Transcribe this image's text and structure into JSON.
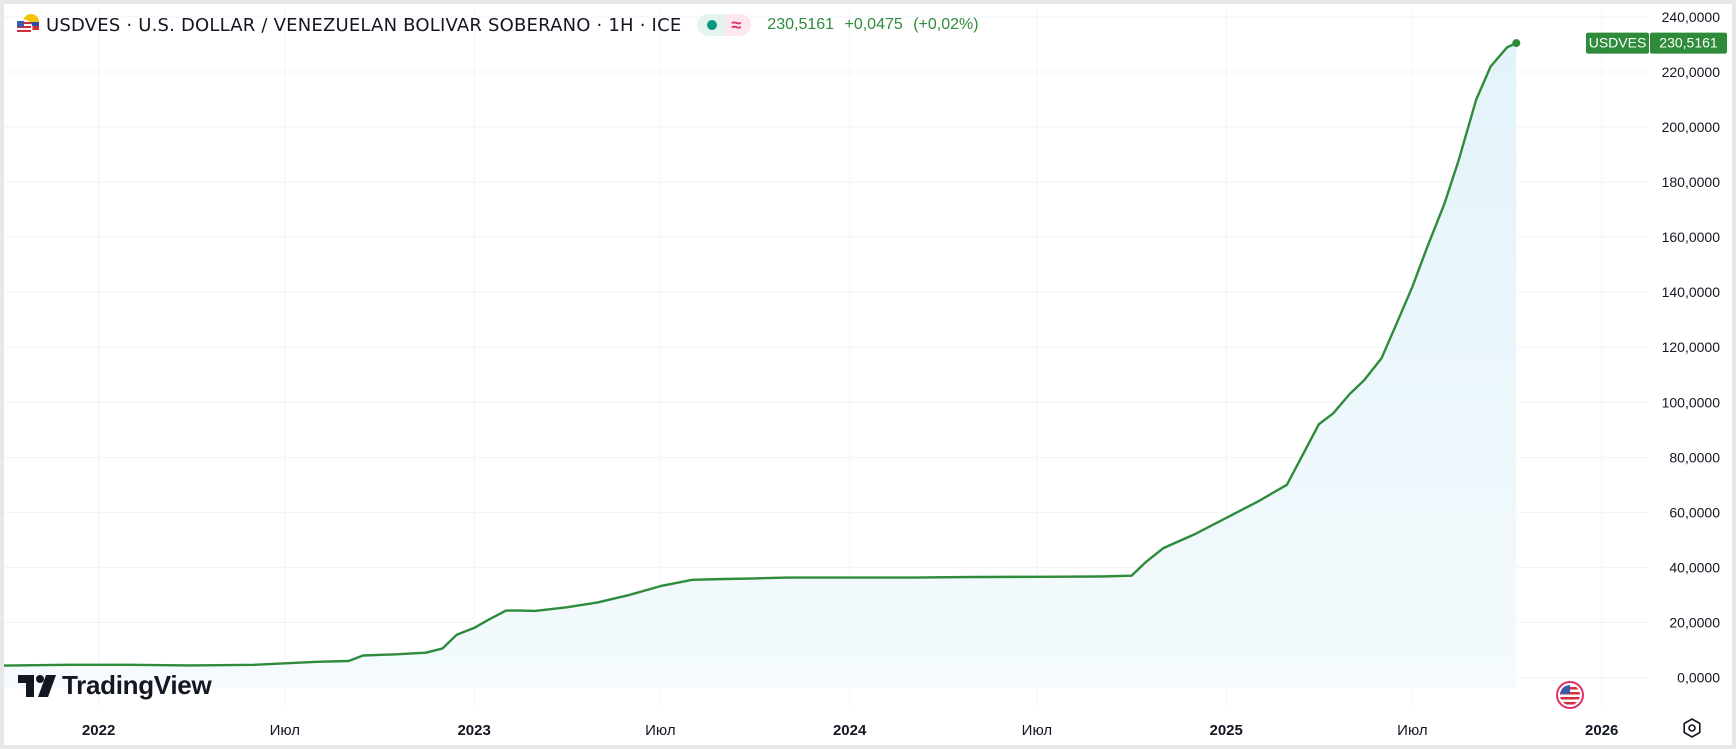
{
  "header": {
    "title": "USDVES · U.S. DOLLAR / VENEZUELAN BOLIVAR SOBERANO · 1H · ICE",
    "last": "230,5161",
    "change": "+0,0475",
    "change_pct": "(+0,02%)",
    "market_status_icon": "market-open-dot",
    "approx_icon": "≈"
  },
  "price_label": {
    "symbol": "USDVES",
    "value": "230,5161"
  },
  "brand": {
    "name": "TradingView"
  },
  "colors": {
    "line": "#2e8b3a",
    "label_bg": "#2e8b3a",
    "area": "#e9f6fb"
  },
  "chart_data": {
    "type": "area",
    "series": [
      {
        "name": "USDVES",
        "x": [
          "2021-10-01",
          "2021-12-01",
          "2022-02-01",
          "2022-04-01",
          "2022-06-01",
          "2022-08-01",
          "2022-09-01",
          "2022-09-15",
          "2022-10-15",
          "2022-11-15",
          "2022-12-01",
          "2022-12-15",
          "2023-01-01",
          "2023-01-15",
          "2023-02-01",
          "2023-02-15",
          "2023-03-01",
          "2023-04-01",
          "2023-05-01",
          "2023-06-01",
          "2023-07-01",
          "2023-08-01",
          "2023-09-01",
          "2023-10-01",
          "2023-11-01",
          "2024-01-01",
          "2024-03-01",
          "2024-05-01",
          "2024-07-01",
          "2024-09-01",
          "2024-10-01",
          "2024-10-15",
          "2024-11-01",
          "2024-12-01",
          "2025-01-01",
          "2025-02-01",
          "2025-03-01",
          "2025-04-01",
          "2025-04-15",
          "2025-05-01",
          "2025-05-15",
          "2025-06-01",
          "2025-06-15",
          "2025-07-01",
          "2025-07-15",
          "2025-08-01",
          "2025-08-15",
          "2025-09-01",
          "2025-09-15",
          "2025-10-01",
          "2025-10-10"
        ],
        "values": [
          4.3,
          4.6,
          4.6,
          4.4,
          4.6,
          5.7,
          6.0,
          8.0,
          8.4,
          9.0,
          10.5,
          15.5,
          18.0,
          21.0,
          24.3,
          24.3,
          24.2,
          25.5,
          27.3,
          30.0,
          33.2,
          35.5,
          35.8,
          36.0,
          36.3,
          36.3,
          36.3,
          36.5,
          36.6,
          36.7,
          37.0,
          42.0,
          47.0,
          52.0,
          58.0,
          64.0,
          70.0,
          92.0,
          96.0,
          103.0,
          108.0,
          116.0,
          128.0,
          142.0,
          156.0,
          172.0,
          188.0,
          210.0,
          222.0,
          229.0,
          230.5161
        ]
      }
    ],
    "x_ticks": [
      {
        "date": "2022-01-01",
        "label": "2022",
        "bold": true
      },
      {
        "date": "2022-07-01",
        "label": "Июл",
        "bold": false
      },
      {
        "date": "2023-01-01",
        "label": "2023",
        "bold": true
      },
      {
        "date": "2023-07-01",
        "label": "Июл",
        "bold": false
      },
      {
        "date": "2024-01-01",
        "label": "2024",
        "bold": true
      },
      {
        "date": "2024-07-01",
        "label": "Июл",
        "bold": false
      },
      {
        "date": "2025-01-01",
        "label": "2025",
        "bold": true
      },
      {
        "date": "2025-07-01",
        "label": "Июл",
        "bold": false
      },
      {
        "date": "2026-01-01",
        "label": "2026",
        "bold": true
      }
    ],
    "y_ticks": [
      {
        "value": 0,
        "label": "0,0000"
      },
      {
        "value": 20,
        "label": "20,0000"
      },
      {
        "value": 40,
        "label": "40,0000"
      },
      {
        "value": 60,
        "label": "60,0000"
      },
      {
        "value": 80,
        "label": "80,0000"
      },
      {
        "value": 100,
        "label": "100,0000"
      },
      {
        "value": 120,
        "label": "120,0000"
      },
      {
        "value": 140,
        "label": "140,0000"
      },
      {
        "value": 160,
        "label": "160,0000"
      },
      {
        "value": 180,
        "label": "180,0000"
      },
      {
        "value": 200,
        "label": "200,0000"
      },
      {
        "value": 220,
        "label": "220,0000"
      },
      {
        "value": 240,
        "label": "240,0000"
      }
    ],
    "ylim": [
      -10,
      244
    ],
    "xlim": [
      "2021-10-01",
      "2026-02-15"
    ],
    "grid": true,
    "y_axis_position": "right"
  }
}
